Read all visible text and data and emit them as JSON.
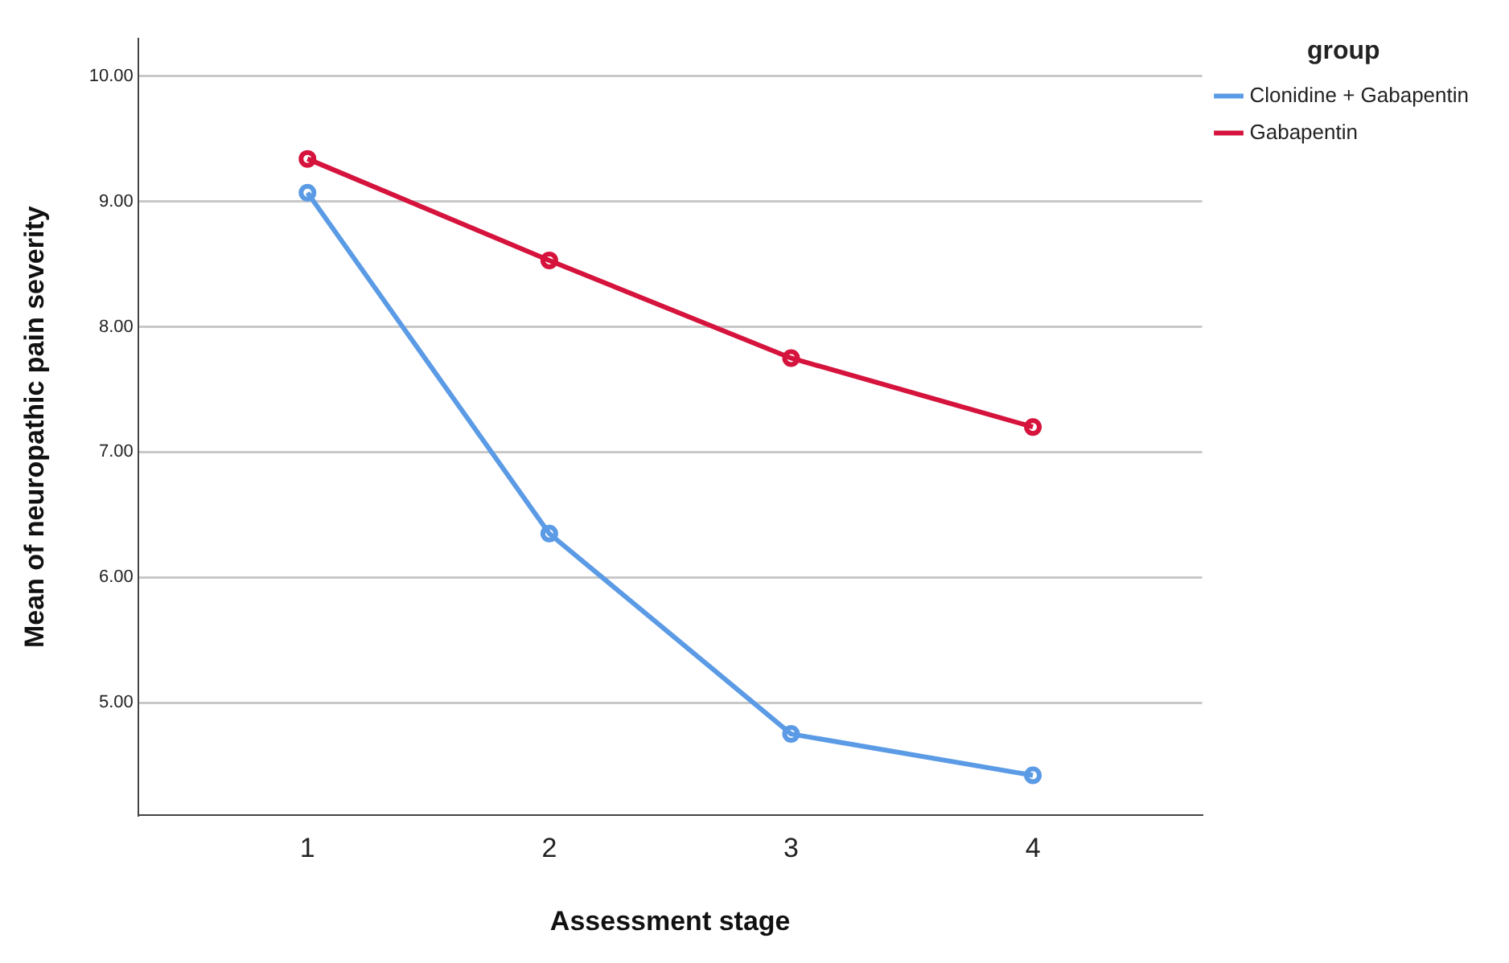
{
  "chart_data": {
    "type": "line",
    "xlabel": "Assessment stage",
    "ylabel": "Mean of neuropathic pain severity",
    "legend_title": "group",
    "x": [
      1,
      2,
      3,
      4
    ],
    "xlim": [
      0.3,
      4.7
    ],
    "xticks": [
      1,
      2,
      3,
      4
    ],
    "ylim": [
      4.1,
      10.3
    ],
    "yticks": [
      {
        "value": 5,
        "label": "5.00"
      },
      {
        "value": 6,
        "label": "6.00"
      },
      {
        "value": 7,
        "label": "7.00"
      },
      {
        "value": 8,
        "label": "8.00"
      },
      {
        "value": 9,
        "label": "9.00"
      },
      {
        "value": 10,
        "label": "10.00"
      }
    ],
    "series": [
      {
        "name": "Clonidine + Gabapentin",
        "color": "#5b9be6",
        "values": [
          9.07,
          6.35,
          4.75,
          4.42
        ]
      },
      {
        "name": "Gabapentin",
        "color": "#d5133c",
        "values": [
          9.34,
          8.53,
          7.75,
          7.2
        ]
      }
    ],
    "grid": "y",
    "legend": "top right",
    "marker": "circle",
    "line_style": "solid"
  }
}
